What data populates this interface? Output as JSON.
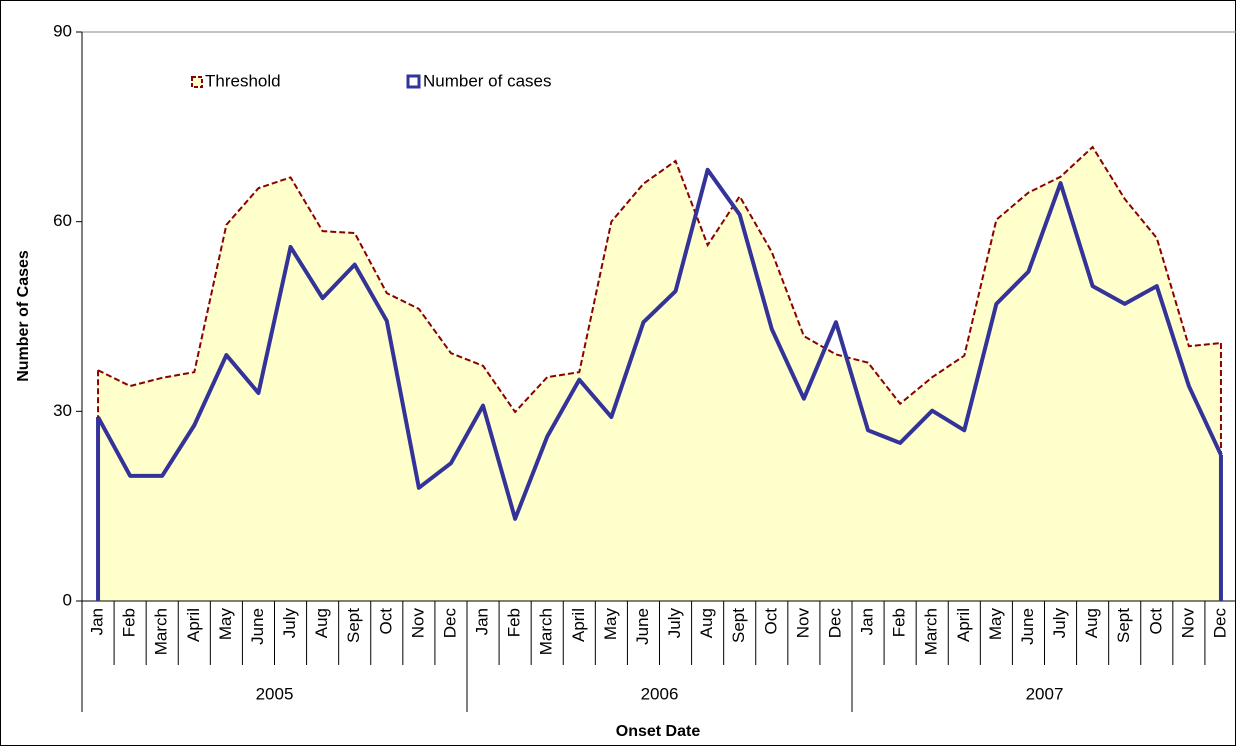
{
  "chart_data": {
    "type": "area-line",
    "y_label": "Number of Cases",
    "x_label": "Onset Date",
    "categories": [
      "Jan",
      "Feb",
      "March",
      "April",
      "May",
      "June",
      "July",
      "Aug",
      "Sept",
      "Oct",
      "Nov",
      "Dec",
      "Jan",
      "Feb",
      "March",
      "April",
      "May",
      "June",
      "July",
      "Aug",
      "Sept",
      "Oct",
      "Nov",
      "Dec",
      "Jan",
      "Feb",
      "March",
      "April",
      "May",
      "June",
      "July",
      "Aug",
      "Sept",
      "Oct",
      "Nov",
      "Dec"
    ],
    "year_groups": [
      "2005",
      "2006",
      "2007"
    ],
    "series": [
      {
        "name": "Threshold",
        "color": "#8b0000",
        "fill": "#ffffcc",
        "values": [
          36.5,
          34,
          35.3,
          36.2,
          59.5,
          65.3,
          67,
          58.5,
          58.2,
          48.7,
          46.2,
          39.2,
          37.2,
          29.9,
          35.4,
          36.2,
          60,
          66,
          69.6,
          56.3,
          64,
          55.2,
          41.9,
          39,
          37.7,
          31.2,
          35.4,
          38.8,
          60.3,
          64.6,
          67.1,
          71.8,
          63.6,
          57.4,
          40.3,
          40.8
        ]
      },
      {
        "name": "Number of cases",
        "color": "#333399",
        "values": [
          29.1,
          19.8,
          19.8,
          27.8,
          38.9,
          32.9,
          56,
          47.9,
          53.2,
          44.3,
          17.9,
          21.8,
          30.9,
          13,
          26,
          35,
          29.1,
          44.1,
          49,
          68.2,
          61.1,
          43,
          32,
          44.1,
          27,
          25,
          30.1,
          27,
          47,
          52.1,
          66.1,
          49.8,
          47,
          49.8,
          34,
          23.1
        ]
      }
    ],
    "ylim": [
      0,
      90
    ],
    "yticks": [
      0,
      30,
      60,
      90
    ]
  }
}
